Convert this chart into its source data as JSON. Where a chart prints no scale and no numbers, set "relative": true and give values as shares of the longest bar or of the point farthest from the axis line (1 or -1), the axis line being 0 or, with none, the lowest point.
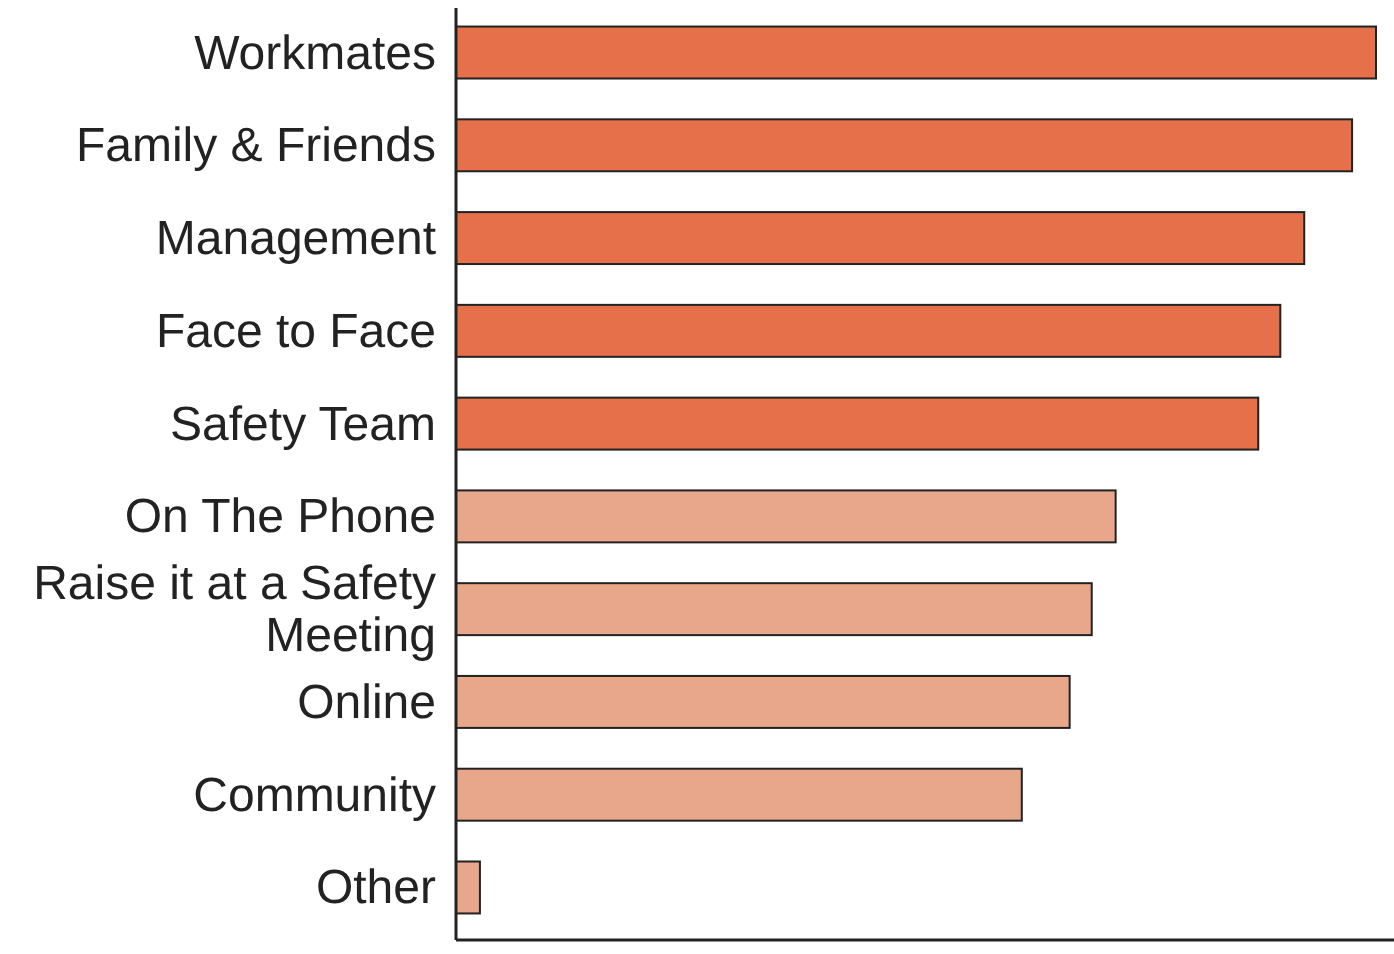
{
  "chart_data": {
    "type": "bar",
    "orientation": "horizontal",
    "relative": true,
    "categories": [
      "Workmates",
      "Family & Friends",
      "Management",
      "Face to Face",
      "Safety Team",
      "On The Phone",
      "Raise it at a Safety Meeting",
      "Online",
      "Community",
      "Other"
    ],
    "values": [
      1,
      0.974,
      0.922,
      0.896,
      0.872,
      0.717,
      0.691,
      0.667,
      0.615,
      0.026
    ],
    "colors": [
      "#e5704a",
      "#e5704a",
      "#e5704a",
      "#e5704a",
      "#e5704a",
      "#e8a68a",
      "#e8a68a",
      "#e8a68a",
      "#e8a68a",
      "#e8a68a"
    ]
  }
}
